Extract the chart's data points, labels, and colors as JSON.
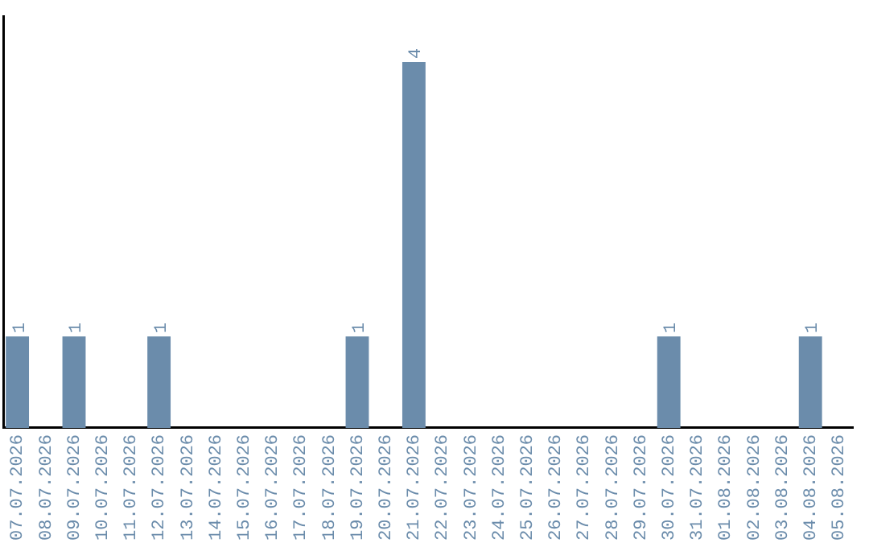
{
  "chart_data": {
    "type": "bar",
    "categories": [
      "07.07.2026",
      "08.07.2026",
      "09.07.2026",
      "10.07.2026",
      "11.07.2026",
      "12.07.2026",
      "13.07.2026",
      "14.07.2026",
      "15.07.2026",
      "16.07.2026",
      "17.07.2026",
      "18.07.2026",
      "19.07.2026",
      "20.07.2026",
      "21.07.2026",
      "22.07.2026",
      "23.07.2026",
      "24.07.2026",
      "25.07.2026",
      "26.07.2026",
      "27.07.2026",
      "28.07.2026",
      "29.07.2026",
      "30.07.2026",
      "31.07.2026",
      "01.08.2026",
      "02.08.2026",
      "03.08.2026",
      "04.08.2026",
      "05.08.2026"
    ],
    "values": [
      1,
      0,
      1,
      0,
      0,
      1,
      0,
      0,
      0,
      0,
      0,
      0,
      1,
      0,
      4,
      0,
      0,
      0,
      0,
      0,
      0,
      0,
      0,
      1,
      0,
      0,
      0,
      0,
      1,
      0
    ],
    "value_labels": [
      "1",
      null,
      "1",
      null,
      null,
      "1",
      null,
      null,
      null,
      null,
      null,
      null,
      "1",
      null,
      "4",
      null,
      null,
      null,
      null,
      null,
      null,
      null,
      null,
      "1",
      null,
      null,
      null,
      null,
      "1",
      null
    ],
    "color": "#6b8cab",
    "tick_labels": "x",
    "grid": false,
    "legend": false
  }
}
